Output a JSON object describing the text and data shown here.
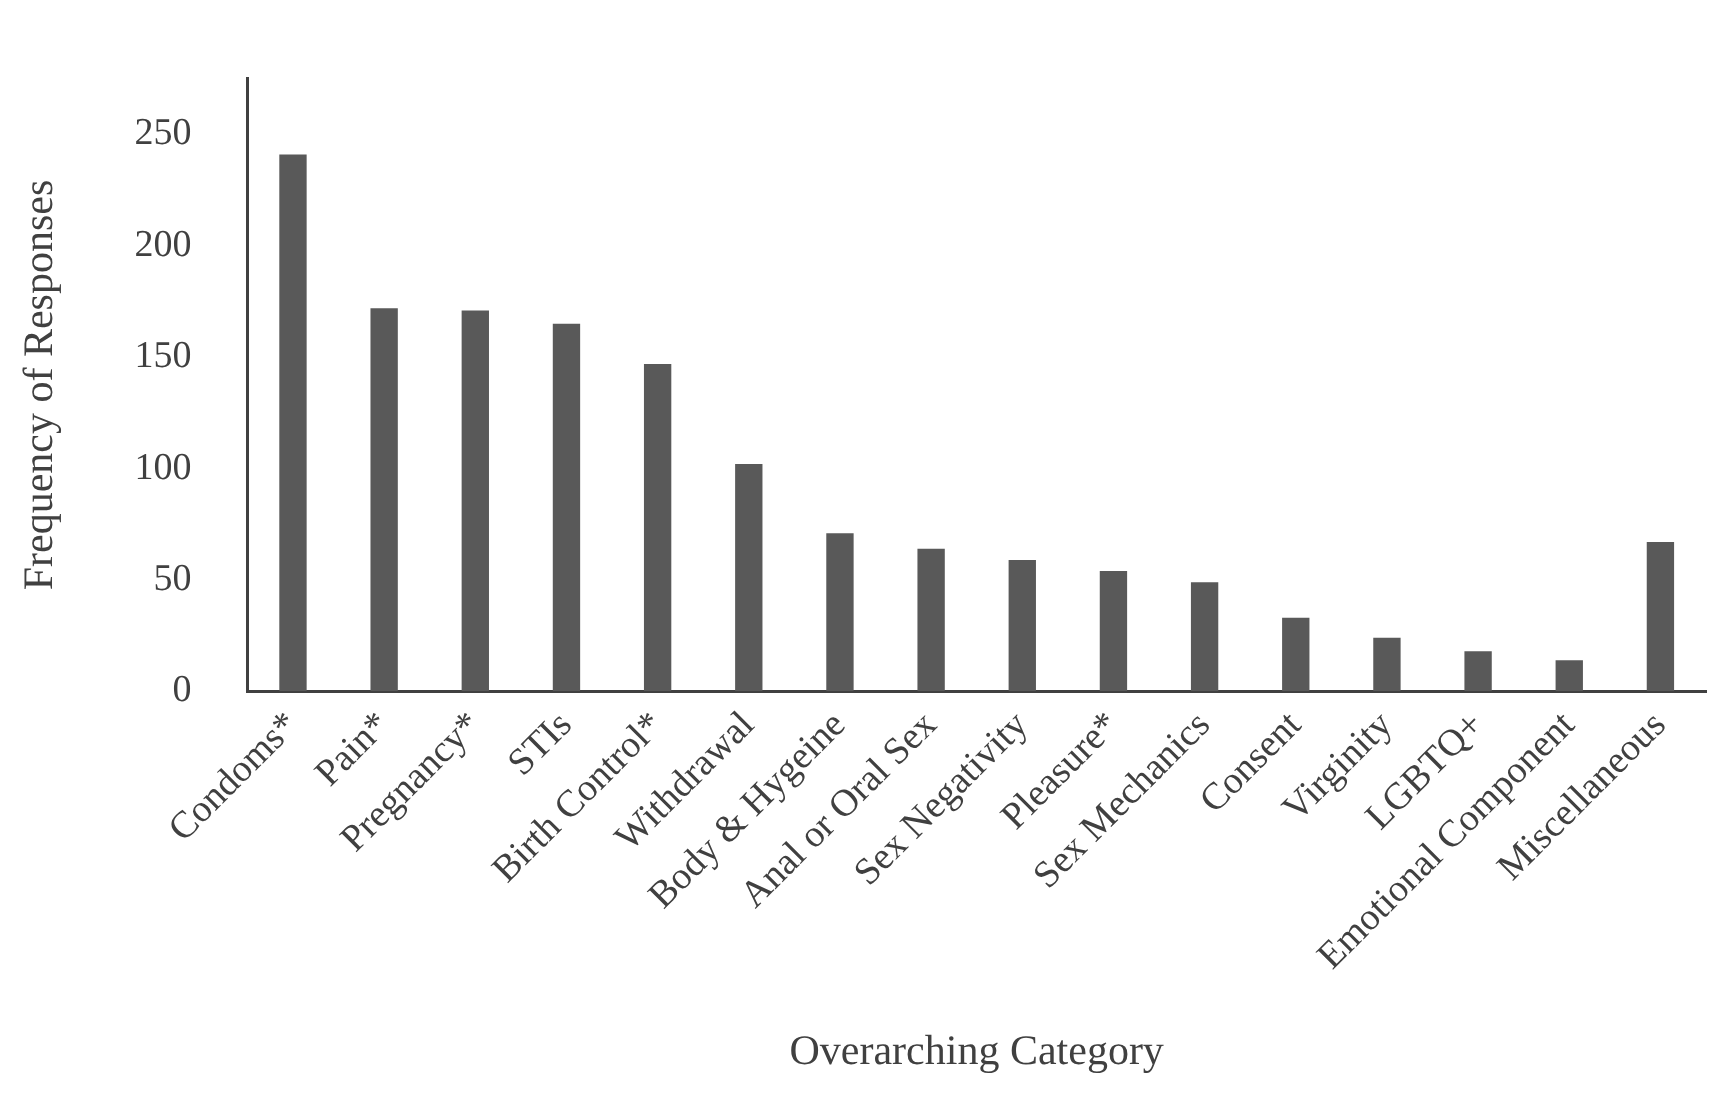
{
  "chart_data": {
    "type": "bar",
    "xlabel": "Overarching Category",
    "ylabel": "Frequency of Responses",
    "categories": [
      "Condoms*",
      "Pain*",
      "Pregnancy*",
      "STIs",
      "Birth Control*",
      "Withdrawal",
      "Body & Hygeine",
      "Anal or Oral Sex",
      "Sex Negativity",
      "Pleasure*",
      "Sex Mechanics",
      "Consent",
      "Virginity",
      "LGBTQ+",
      "Emotional Component",
      "Miscellaneous"
    ],
    "values": [
      241,
      172,
      171,
      165,
      147,
      102,
      71,
      64,
      59,
      54,
      49,
      33,
      24,
      18,
      14,
      67
    ],
    "color": "#595959",
    "ylim": [
      0,
      275
    ],
    "yticks": [
      0,
      50,
      100,
      150,
      200,
      250
    ],
    "grid": false,
    "legend": false
  }
}
